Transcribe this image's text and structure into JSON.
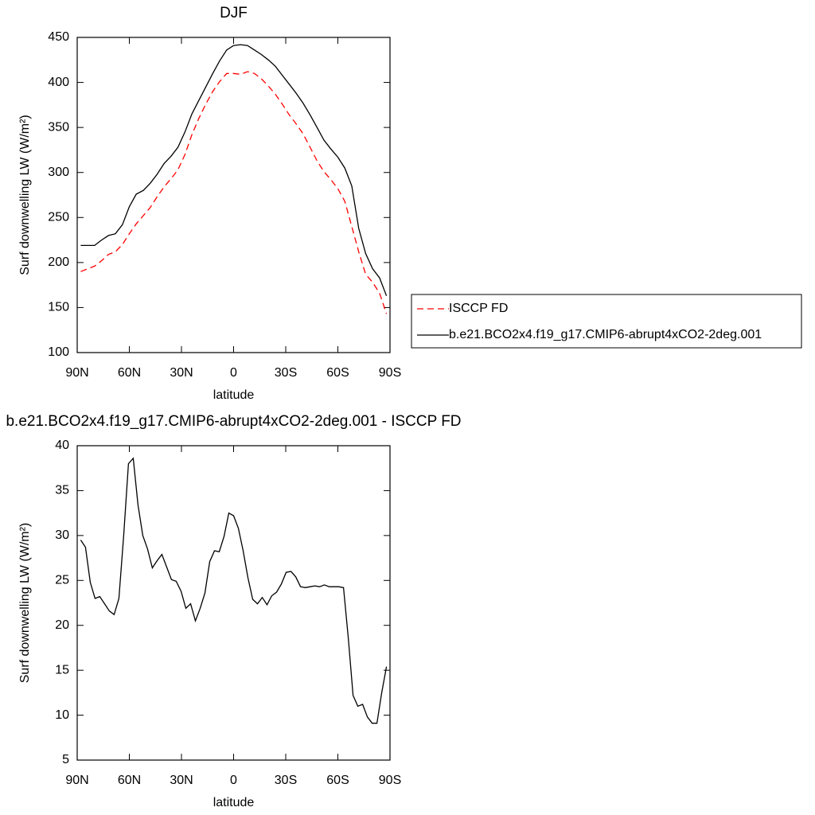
{
  "chart_data": [
    {
      "type": "line",
      "title": "DJF",
      "xlabel": "latitude",
      "ylabel": "Surf downwelling LW (W/m²)",
      "x": [
        88,
        84,
        80,
        76,
        72,
        68,
        64,
        60,
        56,
        52,
        48,
        44,
        40,
        36,
        32,
        28,
        24,
        20,
        16,
        12,
        8,
        4,
        0,
        -4,
        -8,
        -12,
        -16,
        -20,
        -24,
        -28,
        -32,
        -36,
        -40,
        -44,
        -48,
        -52,
        -56,
        -60,
        -64,
        -68,
        -72,
        -76,
        -80,
        -84,
        -88
      ],
      "series": [
        {
          "name": "ISCCP FD",
          "color": "#ff0000",
          "linestyle": "dashed",
          "values": [
            190,
            193,
            196,
            202,
            209,
            212,
            220,
            232,
            243,
            252,
            261,
            273,
            284,
            293,
            303,
            320,
            342,
            360,
            376,
            390,
            401,
            410,
            410,
            409,
            412,
            410,
            404,
            396,
            387,
            376,
            364,
            354,
            343,
            328,
            313,
            301,
            292,
            282,
            268,
            240,
            212,
            187,
            178,
            166,
            143
          ]
        },
        {
          "name": "b.e21.BCO2x4.f19_g17.CMIP6-abrupt4xCO2-2deg.001",
          "color": "#000000",
          "linestyle": "solid",
          "values": [
            219,
            219,
            219,
            225,
            230,
            232,
            242,
            262,
            276,
            280,
            288,
            298,
            310,
            318,
            328,
            345,
            365,
            380,
            395,
            410,
            424,
            436,
            441,
            442,
            441,
            436,
            431,
            425,
            418,
            408,
            398,
            388,
            377,
            364,
            350,
            336,
            326,
            317,
            305,
            285,
            238,
            210,
            193,
            183,
            163
          ]
        }
      ],
      "xlim": [
        90,
        -90
      ],
      "xticks": [
        {
          "value": 90,
          "label": "90N"
        },
        {
          "value": 60,
          "label": "60N"
        },
        {
          "value": 30,
          "label": "30N"
        },
        0,
        {
          "value": -30,
          "label": "30S"
        },
        {
          "value": -60,
          "label": "60S"
        },
        {
          "value": -90,
          "label": "90S"
        }
      ],
      "ylim": [
        100,
        450
      ],
      "yticks": [
        100,
        150,
        200,
        250,
        300,
        350,
        400,
        450
      ],
      "legend": "right"
    },
    {
      "type": "line",
      "title": "b.e21.BCO2x4.f19_g17.CMIP6-abrupt4xCO2-2deg.001 - ISCCP FD",
      "xlabel": "latitude",
      "ylabel": "Surf downwelling LW (W/m²)",
      "x": [
        88,
        85.25,
        82.5,
        79.75,
        77,
        74.25,
        71.5,
        68.75,
        66,
        63.25,
        60.5,
        57.75,
        55,
        52.25,
        49.5,
        46.75,
        44,
        41.25,
        38.5,
        35.75,
        33,
        30.25,
        27.5,
        24.75,
        22,
        19.25,
        16.5,
        13.75,
        11,
        8.25,
        5.5,
        2.75,
        0,
        -2.75,
        -5.5,
        -8.25,
        -11,
        -13.75,
        -16.5,
        -19.25,
        -22,
        -24.75,
        -27.5,
        -30.25,
        -33,
        -35.75,
        -38.5,
        -41.25,
        -44,
        -46.75,
        -49.5,
        -52.25,
        -55,
        -57.75,
        -60.5,
        -63.25,
        -66,
        -68.75,
        -71.5,
        -74.25,
        -77,
        -79.75,
        -82.5,
        -85.25,
        -88
      ],
      "values": [
        29.5,
        28.7,
        24.8,
        23.0,
        23.2,
        22.4,
        21.6,
        21.2,
        23.0,
        30,
        38,
        38.6,
        33.4,
        30.0,
        28.5,
        26.4,
        27.2,
        27.9,
        26.5,
        25.1,
        24.9,
        23.8,
        21.9,
        22.4,
        20.5,
        21.9,
        23.6,
        27.1,
        28.3,
        28.2,
        29.9,
        32.5,
        32.2,
        30.8,
        28.3,
        25.3,
        22.9,
        22.4,
        23.1,
        22.3,
        23.3,
        23.7,
        24.6,
        25.9,
        26.0,
        25.4,
        24.3,
        24.2,
        24.3,
        24.4,
        24.3,
        24.5,
        24.3,
        24.3,
        24.3,
        24.2,
        18.6,
        12.2,
        11.0,
        11.2,
        9.8,
        9.1,
        9.1,
        12.5,
        15.4
      ],
      "color": "#000000",
      "linestyle": "solid",
      "xlim": [
        90,
        -90
      ],
      "xticks": [
        {
          "value": 90,
          "label": "90N"
        },
        {
          "value": 60,
          "label": "60N"
        },
        {
          "value": 30,
          "label": "30N"
        },
        0,
        {
          "value": -30,
          "label": "30S"
        },
        {
          "value": -60,
          "label": "60S"
        },
        {
          "value": -90,
          "label": "90S"
        }
      ],
      "ylim": [
        5,
        40
      ],
      "yticks": [
        5,
        10,
        15,
        20,
        25,
        30,
        35,
        40
      ]
    }
  ]
}
